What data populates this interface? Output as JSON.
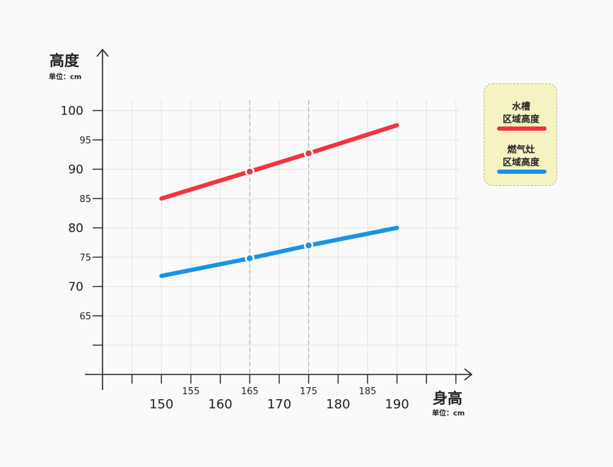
{
  "chart_data": {
    "type": "line",
    "ylabel": "高度",
    "yunit": "单位：cm",
    "xlabel": "身高",
    "xunit": "单位：cm",
    "xlim": [
      140,
      200
    ],
    "ylim": [
      55,
      105
    ],
    "x_major_ticks": [
      150,
      160,
      170,
      180,
      190
    ],
    "x_minor_ticks": [
      155,
      165,
      175,
      185
    ],
    "y_major_ticks": [
      70,
      80,
      90,
      100
    ],
    "y_minor_ticks": [
      65,
      75,
      85,
      95
    ],
    "grid": true,
    "reference_lines_x": [
      165,
      175
    ],
    "legend_position": "right",
    "series": [
      {
        "name": "水槽\n区域高度",
        "color": "#f4333f",
        "x": [
          150,
          165,
          175,
          190
        ],
        "y": [
          85,
          89.6,
          92.7,
          97.5
        ],
        "markers_at": [
          165,
          175
        ]
      },
      {
        "name": "燃气灶\n区域高度",
        "color": "#1a93e6",
        "x": [
          150,
          165,
          175,
          190
        ],
        "y": [
          71.8,
          74.8,
          77,
          80
        ],
        "markers_at": [
          165,
          175
        ]
      }
    ]
  },
  "legend": {
    "items": [
      {
        "line1": "水槽",
        "line2": "区域高度"
      },
      {
        "line1": "燃气灶",
        "line2": "区域高度"
      }
    ]
  }
}
